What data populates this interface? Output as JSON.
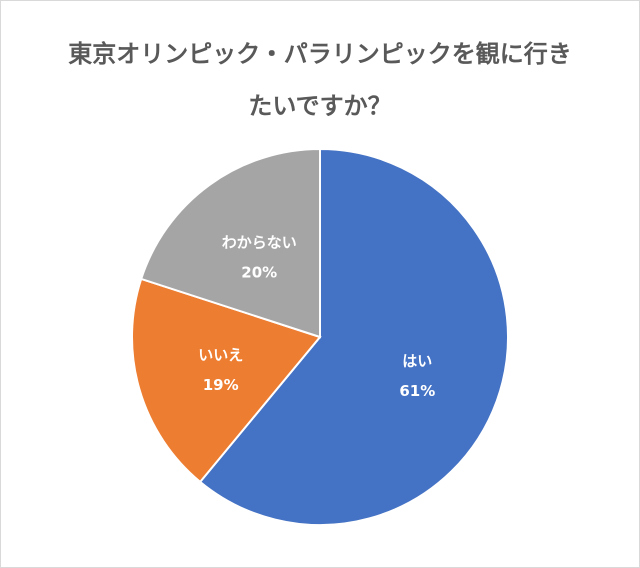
{
  "chart_data": {
    "type": "pie",
    "title_lines": [
      "東京オリンピック・パラリンピックを観に行き",
      "たいですか？"
    ],
    "slices": [
      {
        "label": "はい",
        "value": 61,
        "value_label": "61%",
        "color": "#4472c4"
      },
      {
        "label": "いいえ",
        "value": 19,
        "value_label": "19%",
        "color": "#ed7d31"
      },
      {
        "label": "わからない",
        "value": 20,
        "value_label": "20%",
        "color": "#a5a5a5"
      }
    ]
  }
}
